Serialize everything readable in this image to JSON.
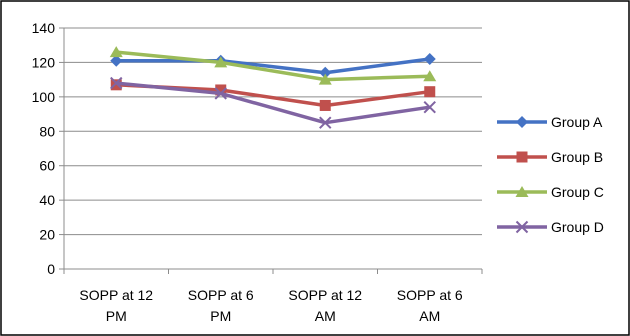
{
  "chart_data": {
    "type": "line",
    "categories": [
      [
        "SOPP at 12",
        "PM"
      ],
      [
        "SOPP at 6",
        "PM"
      ],
      [
        "SOPP at 12",
        "AM"
      ],
      [
        "SOPP at 6",
        "AM"
      ]
    ],
    "series": [
      {
        "name": "Group A",
        "values": [
          121,
          121,
          114,
          122
        ],
        "color": "#4472C4",
        "marker": "diamond"
      },
      {
        "name": "Group B",
        "values": [
          107,
          104,
          95,
          103
        ],
        "color": "#C0504D",
        "marker": "square"
      },
      {
        "name": "Group C",
        "values": [
          126,
          120,
          110,
          112
        ],
        "color": "#9BBB59",
        "marker": "triangle"
      },
      {
        "name": "Group D",
        "values": [
          108,
          102,
          85,
          94
        ],
        "color": "#8064A2",
        "marker": "x"
      }
    ],
    "ylim": [
      0,
      140
    ],
    "yticks": [
      0,
      20,
      40,
      60,
      80,
      100,
      120,
      140
    ],
    "grid": true,
    "legend": "right"
  }
}
